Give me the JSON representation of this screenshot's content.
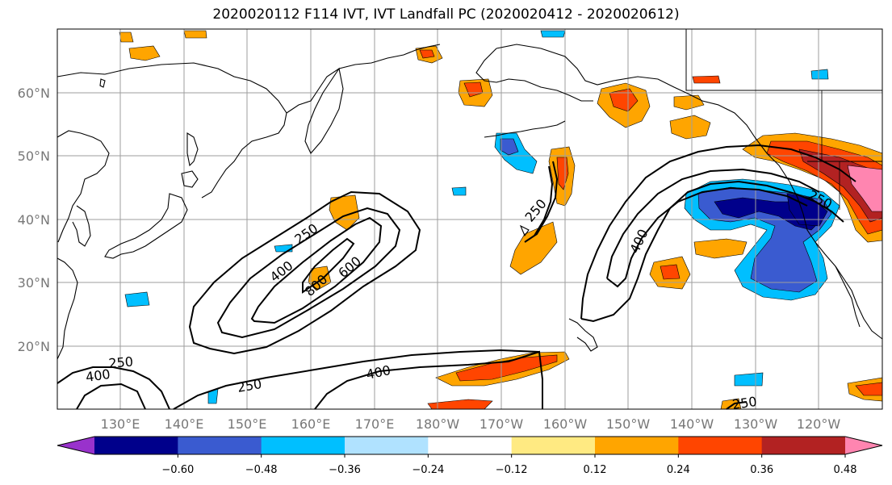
{
  "title": "2020020112 F114 IVT, IVT Landfall PC (2020020412 - 2020020612)",
  "lat_labels": [
    "60°N",
    "50°N",
    "40°N",
    "30°N",
    "20°N"
  ],
  "lon_labels": [
    "130°E",
    "140°E",
    "150°E",
    "160°E",
    "170°E",
    "180°W",
    "170°W",
    "160°W",
    "150°W",
    "140°W",
    "130°W",
    "120°W"
  ],
  "contour_labels": [
    "250",
    "400",
    "600",
    "800",
    "250",
    "400",
    "250",
    "400",
    "250",
    "250",
    "400",
    "250"
  ],
  "colorbar": {
    "colors": [
      "#9932cc",
      "#00008b",
      "#3a5bd0",
      "#00bfff",
      "#b0e2ff",
      "#ffffff",
      "#ffea82",
      "#ffa500",
      "#ff4500",
      "#b22222",
      "#ff85b0"
    ],
    "ticks": [
      "−0.60",
      "−0.48",
      "−0.36",
      "−0.24",
      "−0.12",
      "0.12",
      "0.24",
      "0.36",
      "0.48",
      "0.60"
    ]
  },
  "colors": {
    "land_line": "#000000",
    "grid": "#9e9e9e",
    "contour": "#000000"
  }
}
